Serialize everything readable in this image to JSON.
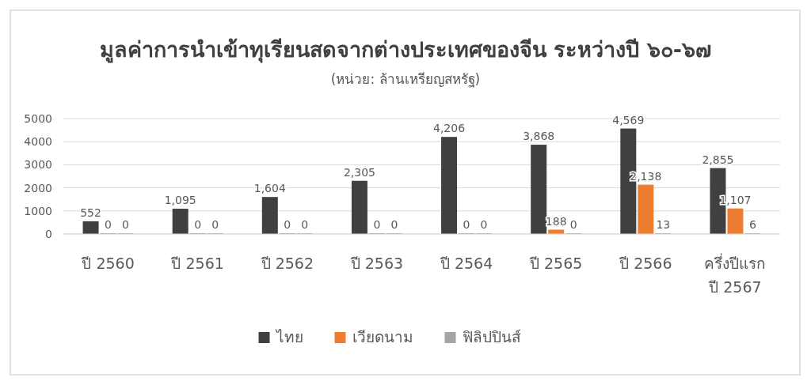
{
  "chart_data": {
    "type": "bar",
    "title": "มูลค่าการนำเข้าทุเรียนสดจากต่างประเทศของจีน ระหว่างปี ๖๐-๖๗",
    "subtitle": "(หน่วย: ล้านเหรียญสหรัฐ)",
    "categories": [
      "ปี 2560",
      "ปี 2561",
      "ปี 2562",
      "ปี 2563",
      "ปี 2564",
      "ปี 2565",
      "ปี 2566",
      "ครึ่งปีแรก ปี 2567"
    ],
    "series": [
      {
        "name": "ไทย",
        "color": "#404040",
        "values": [
          552,
          1095,
          1604,
          2305,
          4206,
          3868,
          4569,
          2855
        ],
        "value_labels": [
          "552",
          "1,095",
          "1,604",
          "2,305",
          "4,206",
          "3,868",
          "4,569",
          "2,855"
        ]
      },
      {
        "name": "เวียดนาม",
        "color": "#ed7d31",
        "values": [
          0,
          0,
          0,
          0,
          0,
          188,
          2138,
          1107
        ],
        "value_labels": [
          "0",
          "0",
          "0",
          "0",
          "0",
          "188",
          "2,138",
          "1,107"
        ]
      },
      {
        "name": "ฟิลิปปินส์",
        "color": "#a5a5a5",
        "values": [
          0,
          0,
          0,
          0,
          0,
          0,
          13,
          6
        ],
        "value_labels": [
          "0",
          "0",
          "0",
          "0",
          "0",
          "0",
          "13",
          "6"
        ]
      }
    ],
    "ylim": [
      0,
      5000
    ],
    "yticks": [
      0,
      1000,
      2000,
      3000,
      4000,
      5000
    ],
    "grid": "y",
    "legend": "bottom"
  }
}
